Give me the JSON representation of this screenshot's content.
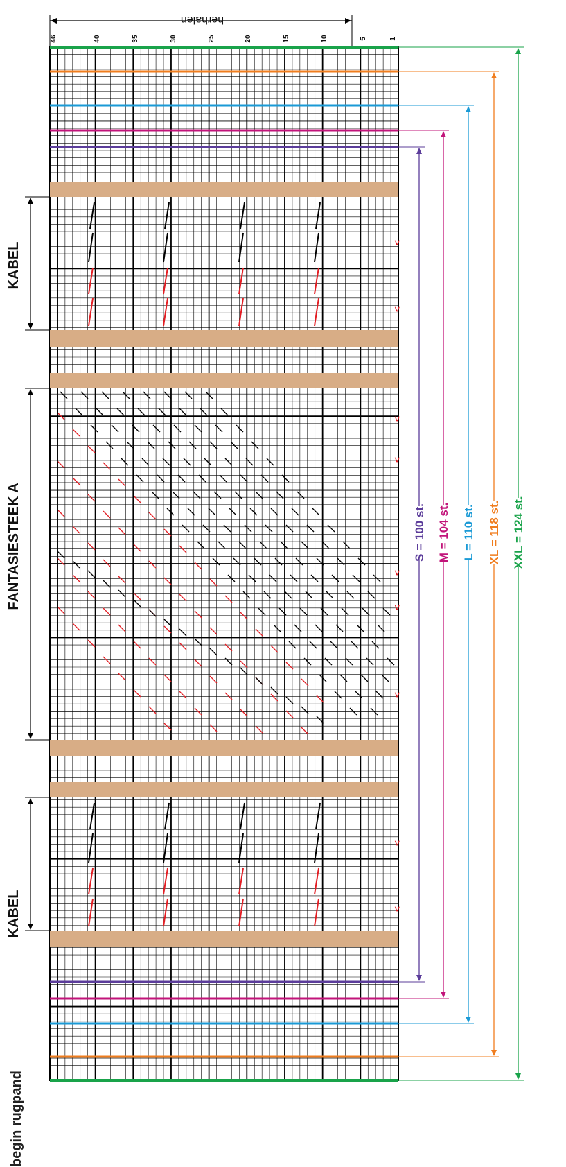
{
  "title": "begin rugpand",
  "sections": [
    {
      "label": "KABEL",
      "kind": "kabel"
    },
    {
      "label": "FANTASIESTEEK A",
      "kind": "fantasie"
    },
    {
      "label": "KABEL",
      "kind": "kabel"
    }
  ],
  "repeat_label": "herhalen",
  "row_numbers": [
    "46",
    "40",
    "35",
    "30",
    "25",
    "20",
    "15",
    "10",
    "5",
    "1"
  ],
  "sizes": [
    {
      "label": "S = 100 st.",
      "color": "#5b3c9a"
    },
    {
      "label": "M = 104 st.",
      "color": "#c2147a"
    },
    {
      "label": "L = 110 st.",
      "color": "#1a9ad6"
    },
    {
      "label": "XL = 118 st.",
      "color": "#f07d1e"
    },
    {
      "label": "XXL = 124 st.",
      "color": "#19a34a"
    }
  ],
  "colors": {
    "grid": "#000000",
    "purl_band": "#d8ad86",
    "cable_black": "#000000",
    "cable_red": "#e31e24"
  },
  "symbols": {
    "right_marker": ">",
    "cross": "\\",
    "cross_alt": "/"
  }
}
